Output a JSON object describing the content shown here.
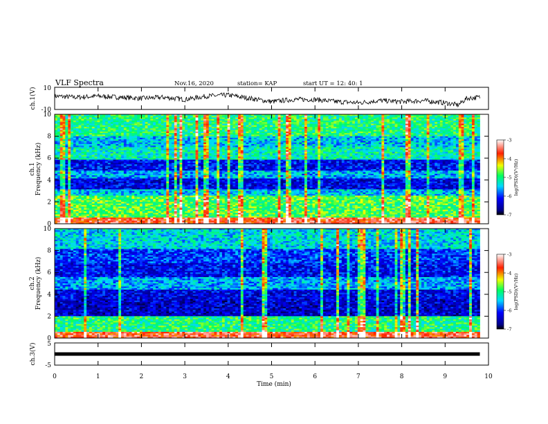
{
  "header": {
    "title": "VLF Spectra",
    "date": "Nov.16, 2020",
    "station": "station= KAP",
    "start": "start  UT =   12: 40: 1"
  },
  "chart_data": [
    {
      "type": "line",
      "panel": "ch1-waveform",
      "ylabel": "ch.1(V)",
      "ylim": [
        -10,
        10
      ],
      "yticks": [
        "10",
        "-10"
      ],
      "xlim": [
        0,
        10
      ],
      "trace_end_min": 9.8,
      "series": [
        {
          "x": [
            0,
            0.5,
            1,
            1.5,
            2,
            2.5,
            3,
            3.5,
            4,
            4.5,
            5,
            5.5,
            6,
            6.5,
            7,
            7.5,
            8,
            8.5,
            9,
            9.3,
            9.5,
            9.8
          ],
          "values": [
            2,
            1,
            2,
            1,
            0,
            1,
            -1,
            2,
            3,
            0,
            -3,
            -1,
            -1,
            -3,
            -4,
            -2,
            -3,
            -2,
            -4,
            -6,
            0,
            1
          ]
        }
      ],
      "color": "#000000"
    },
    {
      "type": "heatmap",
      "panel": "ch1-spectrogram",
      "ylabel_top": "ch.1",
      "ylabel": "Frequency (kHz)",
      "ylim": [
        0,
        10
      ],
      "yticks": [
        "0",
        "2",
        "4",
        "6",
        "8",
        "10"
      ],
      "xlim": [
        0,
        10
      ],
      "data_end_min": 9.8,
      "bands_khz": [
        {
          "from": 0,
          "to": 0.5,
          "level": -3.6
        },
        {
          "from": 0.5,
          "to": 2.5,
          "level": -4.8
        },
        {
          "from": 2.5,
          "to": 3.2,
          "level": -5.5
        },
        {
          "from": 3.2,
          "to": 4.2,
          "level": -6.3
        },
        {
          "from": 4.2,
          "to": 4.8,
          "level": -5.6
        },
        {
          "from": 4.8,
          "to": 5.8,
          "level": -6.2
        },
        {
          "from": 5.8,
          "to": 7.0,
          "level": -5.2
        },
        {
          "from": 7.0,
          "to": 8.0,
          "level": -5.5
        },
        {
          "from": 8.0,
          "to": 10.0,
          "level": -5.0
        }
      ],
      "colorbar": {
        "label": "log(PSD)(V²/Hz)",
        "range": [
          -7,
          -3
        ],
        "ticks": [
          "-3",
          "-4",
          "-5",
          "-6",
          "-7"
        ]
      }
    },
    {
      "type": "heatmap",
      "panel": "ch2-spectrogram",
      "ylabel_top": "ch.2",
      "ylabel": "Frequency (kHz)",
      "ylim": [
        0,
        10
      ],
      "yticks": [
        "0",
        "2",
        "4",
        "6",
        "8",
        "10"
      ],
      "xlim": [
        0,
        10
      ],
      "data_end_min": 9.8,
      "bands_khz": [
        {
          "from": 0,
          "to": 0.5,
          "level": -3.6
        },
        {
          "from": 0.5,
          "to": 2.0,
          "level": -5.0
        },
        {
          "from": 2.0,
          "to": 3.6,
          "level": -6.4
        },
        {
          "from": 3.6,
          "to": 4.4,
          "level": -6.3
        },
        {
          "from": 4.4,
          "to": 5.5,
          "level": -5.6
        },
        {
          "from": 5.5,
          "to": 6.8,
          "level": -6.2
        },
        {
          "from": 6.8,
          "to": 8.2,
          "level": -6.0
        },
        {
          "from": 8.2,
          "to": 10.0,
          "level": -5.4
        }
      ],
      "colorbar": {
        "label": "log(PSD)(V²/Hz)",
        "range": [
          -7,
          -3
        ],
        "ticks": [
          "-3",
          "-4",
          "-5",
          "-6",
          "-7"
        ]
      }
    },
    {
      "type": "line",
      "panel": "ch3-waveform",
      "ylabel": "ch.3(V)",
      "ylim": [
        -5,
        5
      ],
      "yticks": [
        "5",
        "-5"
      ],
      "xlim": [
        0,
        10
      ],
      "trace_end_min": 9.8,
      "series": [
        {
          "x": [
            0,
            9.8
          ],
          "values": [
            0,
            0
          ]
        }
      ],
      "color": "#000000"
    }
  ],
  "xaxis": {
    "label": "Time (min)",
    "ticks": [
      "0",
      "1",
      "2",
      "3",
      "4",
      "5",
      "6",
      "7",
      "8",
      "9",
      "10"
    ]
  }
}
